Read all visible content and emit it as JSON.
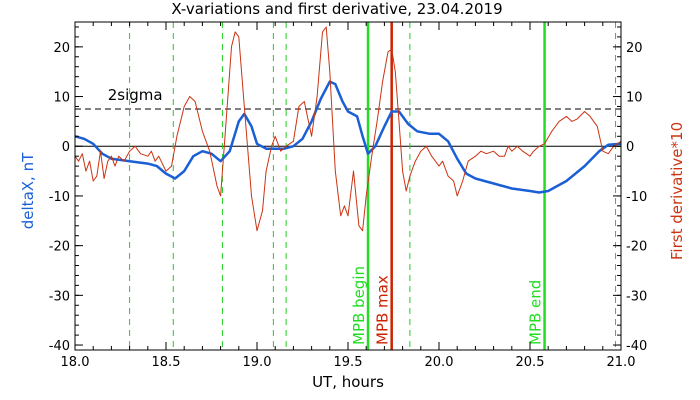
{
  "chart_data": {
    "type": "line",
    "title": "X-variations and first derivative, 23.04.2019",
    "xlabel": "UT, hours",
    "ylabel_left": "deltaX, nT",
    "ylabel_right": "First derivative*10",
    "xlim": [
      18.0,
      21.0
    ],
    "ylim": [
      -41,
      25
    ],
    "x_ticks": [
      18.0,
      18.5,
      19.0,
      19.5,
      20.0,
      20.5,
      21.0
    ],
    "x_tick_labels": [
      "18.0",
      "18.5",
      "19.0",
      "19.5",
      "20.0",
      "20.5",
      "21.0"
    ],
    "y_ticks": [
      -40,
      -30,
      -20,
      -10,
      0,
      10,
      20
    ],
    "y_tick_labels": [
      "-40",
      "-30",
      "-20",
      "-10",
      "0",
      "10",
      "20"
    ],
    "sigma_level": 7.5,
    "sigma_label": "2sigma",
    "zero_line": 0,
    "dashed_markers_x": [
      18.3,
      18.54,
      18.81,
      19.09,
      19.16,
      19.84,
      20.97
    ],
    "events": [
      {
        "label": "MPB begin",
        "x": 19.61,
        "color": "#22dd22"
      },
      {
        "label": "MPB max",
        "x": 19.74,
        "color": "#cc2200"
      },
      {
        "label": "MPB end",
        "x": 20.58,
        "color": "#22dd22"
      }
    ],
    "series": [
      {
        "name": "deltaX, nT",
        "color": "#1a5fd6",
        "points": [
          [
            18.0,
            2.0
          ],
          [
            18.05,
            1.5
          ],
          [
            18.1,
            0.5
          ],
          [
            18.15,
            -1.5
          ],
          [
            18.2,
            -2.5
          ],
          [
            18.3,
            -3.0
          ],
          [
            18.4,
            -3.5
          ],
          [
            18.45,
            -4.0
          ],
          [
            18.5,
            -5.5
          ],
          [
            18.55,
            -6.5
          ],
          [
            18.6,
            -5.0
          ],
          [
            18.65,
            -2.0
          ],
          [
            18.7,
            -1.0
          ],
          [
            18.75,
            -1.5
          ],
          [
            18.8,
            -3.0
          ],
          [
            18.85,
            -1.0
          ],
          [
            18.9,
            5.0
          ],
          [
            18.93,
            6.5
          ],
          [
            18.97,
            4.0
          ],
          [
            19.0,
            0.5
          ],
          [
            19.05,
            -0.5
          ],
          [
            19.1,
            -0.5
          ],
          [
            19.15,
            -0.5
          ],
          [
            19.2,
            0.0
          ],
          [
            19.25,
            1.5
          ],
          [
            19.3,
            5.0
          ],
          [
            19.35,
            9.5
          ],
          [
            19.4,
            13.0
          ],
          [
            19.43,
            12.5
          ],
          [
            19.47,
            9.0
          ],
          [
            19.5,
            7.0
          ],
          [
            19.55,
            6.0
          ],
          [
            19.58,
            2.0
          ],
          [
            19.61,
            -1.5
          ],
          [
            19.65,
            0.0
          ],
          [
            19.7,
            4.0
          ],
          [
            19.74,
            7.0
          ],
          [
            19.78,
            7.0
          ],
          [
            19.83,
            4.5
          ],
          [
            19.88,
            3.0
          ],
          [
            19.95,
            2.5
          ],
          [
            20.0,
            2.5
          ],
          [
            20.05,
            1.0
          ],
          [
            20.1,
            -2.5
          ],
          [
            20.15,
            -5.5
          ],
          [
            20.2,
            -6.5
          ],
          [
            20.3,
            -7.5
          ],
          [
            20.4,
            -8.5
          ],
          [
            20.5,
            -9.0
          ],
          [
            20.55,
            -9.3
          ],
          [
            20.6,
            -9.0
          ],
          [
            20.7,
            -7.0
          ],
          [
            20.8,
            -4.0
          ],
          [
            20.88,
            -1.0
          ],
          [
            20.93,
            0.3
          ],
          [
            21.0,
            0.5
          ]
        ]
      },
      {
        "name": "First derivative*10",
        "color": "#cc3311",
        "points": [
          [
            18.0,
            -2.0
          ],
          [
            18.02,
            -3.0
          ],
          [
            18.04,
            -1.5
          ],
          [
            18.06,
            -5.0
          ],
          [
            18.08,
            -3.0
          ],
          [
            18.1,
            -7.0
          ],
          [
            18.12,
            -6.0
          ],
          [
            18.14,
            -1.0
          ],
          [
            18.16,
            -6.5
          ],
          [
            18.18,
            -3.0
          ],
          [
            18.2,
            -2.0
          ],
          [
            18.22,
            -4.0
          ],
          [
            18.24,
            -2.0
          ],
          [
            18.27,
            -3.0
          ],
          [
            18.3,
            -1.0
          ],
          [
            18.33,
            0.0
          ],
          [
            18.36,
            -1.5
          ],
          [
            18.4,
            -2.0
          ],
          [
            18.42,
            -1.0
          ],
          [
            18.44,
            -3.0
          ],
          [
            18.46,
            -2.0
          ],
          [
            18.5,
            -5.0
          ],
          [
            18.53,
            -4.0
          ],
          [
            18.56,
            2.0
          ],
          [
            18.6,
            8.0
          ],
          [
            18.63,
            10.0
          ],
          [
            18.66,
            9.0
          ],
          [
            18.7,
            3.0
          ],
          [
            18.74,
            -1.0
          ],
          [
            18.78,
            -8.0
          ],
          [
            18.8,
            -10.0
          ],
          [
            18.83,
            5.0
          ],
          [
            18.86,
            20.0
          ],
          [
            18.88,
            23.0
          ],
          [
            18.9,
            22.0
          ],
          [
            18.93,
            8.0
          ],
          [
            18.97,
            -10.0
          ],
          [
            19.0,
            -17.0
          ],
          [
            19.03,
            -13.0
          ],
          [
            19.05,
            -5.0
          ],
          [
            19.08,
            0.0
          ],
          [
            19.1,
            2.0
          ],
          [
            19.13,
            -1.0
          ],
          [
            19.16,
            0.0
          ],
          [
            19.2,
            1.0
          ],
          [
            19.23,
            8.0
          ],
          [
            19.26,
            9.0
          ],
          [
            19.3,
            2.0
          ],
          [
            19.33,
            10.0
          ],
          [
            19.36,
            23.0
          ],
          [
            19.38,
            24.0
          ],
          [
            19.4,
            15.0
          ],
          [
            19.43,
            -5.0
          ],
          [
            19.46,
            -14.0
          ],
          [
            19.48,
            -12.0
          ],
          [
            19.5,
            -14.0
          ],
          [
            19.53,
            -5.0
          ],
          [
            19.56,
            -16.0
          ],
          [
            19.58,
            -17.0
          ],
          [
            19.6,
            -10.0
          ],
          [
            19.63,
            -2.0
          ],
          [
            19.66,
            5.0
          ],
          [
            19.69,
            13.0
          ],
          [
            19.72,
            19.0
          ],
          [
            19.74,
            19.5
          ],
          [
            19.76,
            15.0
          ],
          [
            19.78,
            5.0
          ],
          [
            19.8,
            -5.0
          ],
          [
            19.82,
            -9.0
          ],
          [
            19.84,
            -6.0
          ],
          [
            19.87,
            -3.0
          ],
          [
            19.9,
            -1.0
          ],
          [
            19.93,
            0.0
          ],
          [
            19.96,
            -2.0
          ],
          [
            20.0,
            -4.0
          ],
          [
            20.02,
            -3.0
          ],
          [
            20.05,
            -6.0
          ],
          [
            20.08,
            -7.0
          ],
          [
            20.1,
            -10.0
          ],
          [
            20.13,
            -7.0
          ],
          [
            20.16,
            -3.0
          ],
          [
            20.2,
            -2.0
          ],
          [
            20.23,
            -1.0
          ],
          [
            20.26,
            -1.5
          ],
          [
            20.3,
            -1.0
          ],
          [
            20.33,
            -2.0
          ],
          [
            20.36,
            -2.0
          ],
          [
            20.38,
            0.0
          ],
          [
            20.4,
            -1.0
          ],
          [
            20.43,
            0.0
          ],
          [
            20.46,
            -1.0
          ],
          [
            20.5,
            -2.0
          ],
          [
            20.52,
            -1.0
          ],
          [
            20.55,
            0.0
          ],
          [
            20.58,
            0.5
          ],
          [
            20.62,
            3.0
          ],
          [
            20.66,
            5.0
          ],
          [
            20.7,
            6.0
          ],
          [
            20.73,
            5.0
          ],
          [
            20.76,
            5.5
          ],
          [
            20.8,
            7.0
          ],
          [
            20.83,
            6.0
          ],
          [
            20.87,
            4.0
          ],
          [
            20.9,
            -1.0
          ],
          [
            20.93,
            -1.5
          ],
          [
            20.96,
            0.0
          ],
          [
            21.0,
            1.0
          ]
        ]
      }
    ]
  }
}
